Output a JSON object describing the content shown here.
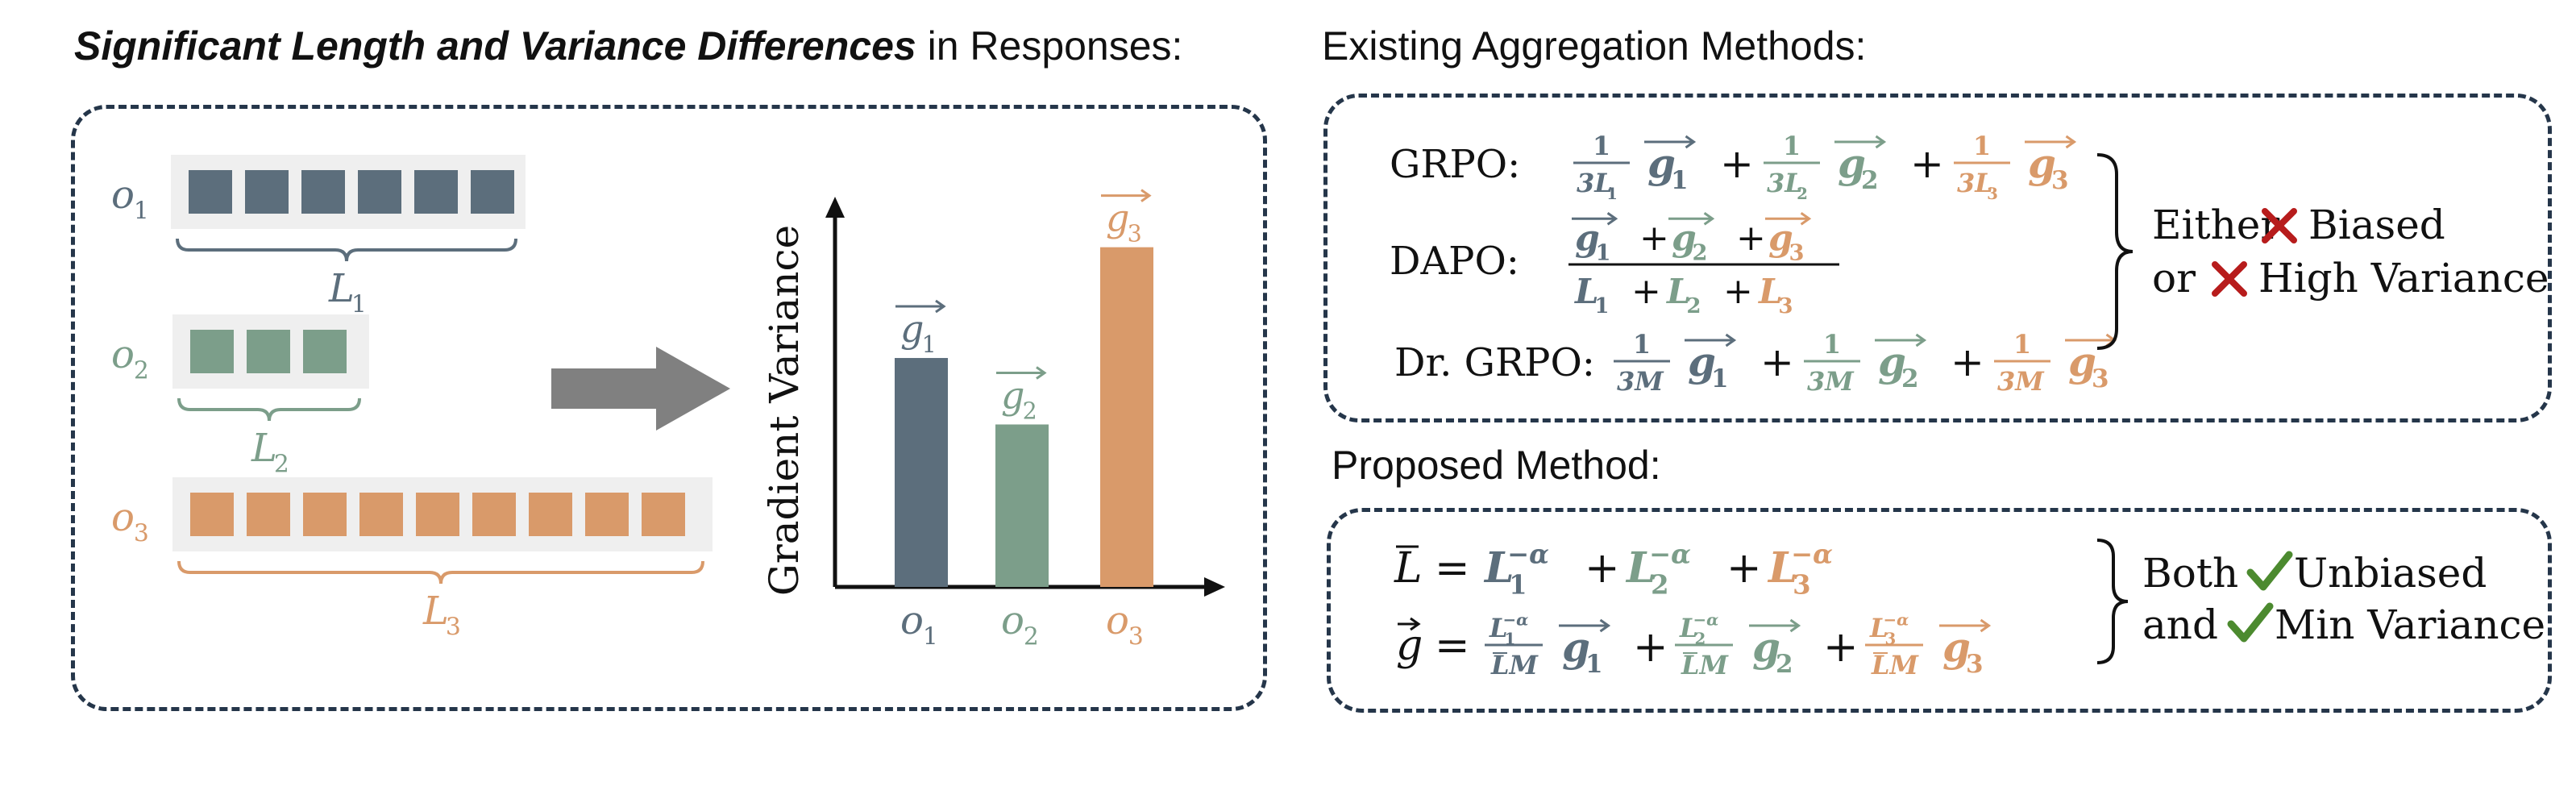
{
  "headings": {
    "left_bold": "Significant Length and Variance Differences",
    "left_rest": " in Responses:",
    "existing": "Existing Aggregation Methods:",
    "proposed": "Proposed Method:"
  },
  "colors": {
    "o1": "#5c6e7c",
    "o2": "#7c9e8a",
    "o3": "#d99a6a",
    "cross": "#b71c1c",
    "check": "#4c8a2f",
    "border": "#25364a",
    "arrow": "#808080",
    "track": "#efefef"
  },
  "sequences": [
    {
      "label": "o",
      "sub": "1",
      "length_label": "L",
      "length_sub": "1",
      "tokens": 6,
      "color": "#5c6e7c"
    },
    {
      "label": "o",
      "sub": "2",
      "length_label": "L",
      "length_sub": "2",
      "tokens": 3,
      "color": "#7c9e8a"
    },
    {
      "label": "o",
      "sub": "3",
      "length_label": "L",
      "length_sub": "3",
      "tokens": 9,
      "color": "#d99a6a"
    }
  ],
  "chart_data": {
    "type": "bar",
    "ylabel": "Gradient Variance",
    "categories": [
      "o1",
      "o2",
      "o3"
    ],
    "category_labels": [
      {
        "base": "o",
        "sub": "1"
      },
      {
        "base": "o",
        "sub": "2"
      },
      {
        "base": "o",
        "sub": "3"
      }
    ],
    "bar_labels": [
      {
        "base": "g",
        "sub": "1"
      },
      {
        "base": "g",
        "sub": "2"
      },
      {
        "base": "g",
        "sub": "3"
      }
    ],
    "values": [
      0.62,
      0.44,
      0.92
    ],
    "ylim": [
      0,
      1
    ],
    "colors": [
      "#5c6e7c",
      "#7c9e8a",
      "#d99a6a"
    ]
  },
  "methods": [
    {
      "name": "GRPO:",
      "type": "sum",
      "coef_num": "1",
      "coefs": [
        "3L",
        "3L",
        "3L"
      ],
      "coef_subs": [
        "1",
        "2",
        "3"
      ]
    },
    {
      "name": "DAPO:",
      "type": "frac"
    },
    {
      "name": "Dr. GRPO:",
      "type": "sum",
      "coef_num": "1",
      "coefs": [
        "3M",
        "3M",
        "3M"
      ],
      "coef_subs": [
        "",
        "",
        ""
      ]
    }
  ],
  "existing_verdict": {
    "line1_pre": "Either",
    "line1_post": "Biased",
    "line2_pre": "or",
    "line2_post": "High Variance"
  },
  "proposed_verdict": {
    "line1_pre": "Both",
    "line1_post": "Unbiased",
    "line2_pre": "and",
    "line2_post": "Min Variance"
  },
  "math": {
    "g": "g",
    "L": "L",
    "M": "M",
    "plus": "+",
    "eq": "=",
    "neg_alpha": "−α",
    "LM": "LM"
  }
}
